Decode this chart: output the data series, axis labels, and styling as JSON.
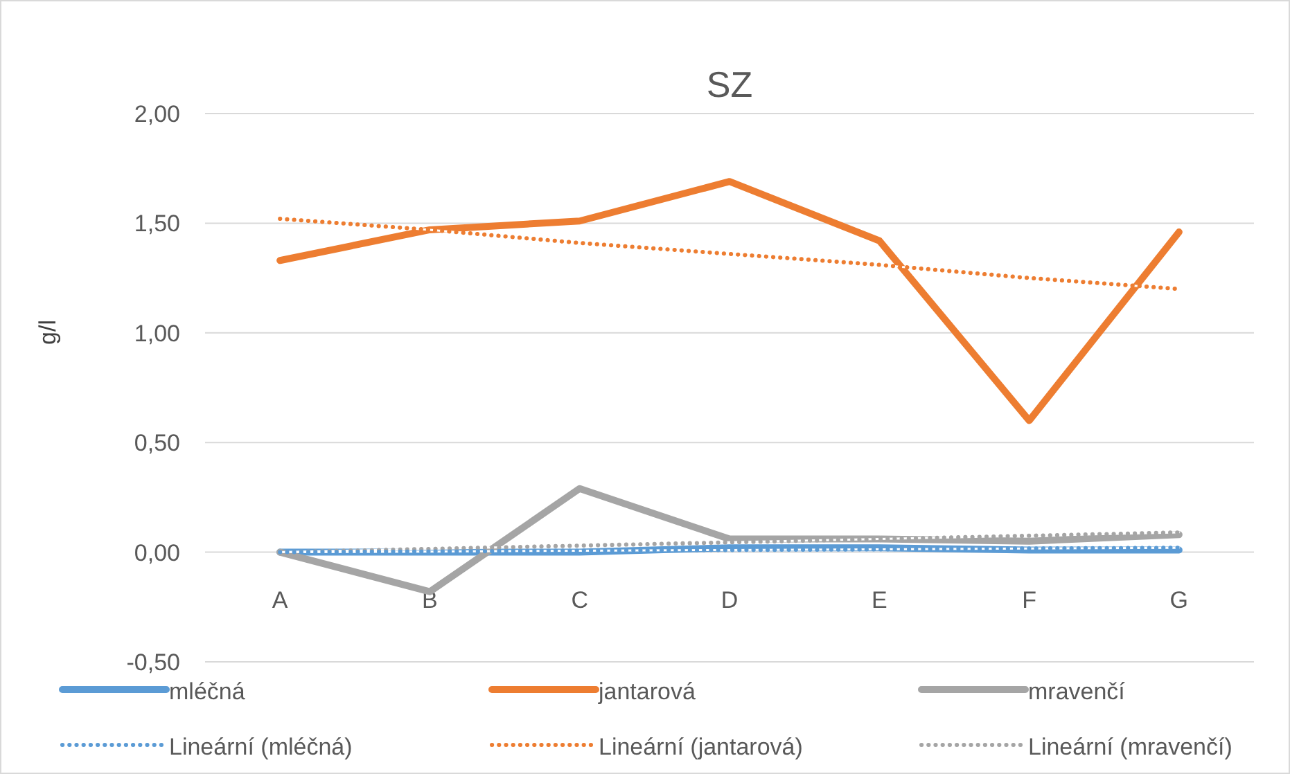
{
  "chart_data": {
    "type": "line",
    "title": "SZ",
    "ylabel": "g/l",
    "categories": [
      "A",
      "B",
      "C",
      "D",
      "E",
      "F",
      "G"
    ],
    "ylim": [
      -0.5,
      2
    ],
    "yticks": [
      {
        "value": -0.5,
        "label": "-0,50"
      },
      {
        "value": 0,
        "label": "0,00"
      },
      {
        "value": 0.5,
        "label": "0,50"
      },
      {
        "value": 1,
        "label": "1,00"
      },
      {
        "value": 1.5,
        "label": "1,50"
      },
      {
        "value": 2,
        "label": "2,00"
      }
    ],
    "grid": "y",
    "legend": "bottom",
    "marker": "none",
    "series": [
      {
        "name": "mléčná",
        "color": "#5b9bd5",
        "line_style": "solid",
        "values": [
          0,
          0,
          0,
          0.02,
          0.02,
          0.01,
          0.01
        ]
      },
      {
        "name": "jantarová",
        "color": "#ed7d31",
        "line_style": "solid",
        "values": [
          1.33,
          1.47,
          1.51,
          1.69,
          1.42,
          0.6,
          1.46
        ]
      },
      {
        "name": "mravenčí",
        "color": "#a5a5a5",
        "line_style": "solid",
        "values": [
          0,
          -0.18,
          0.29,
          0.06,
          0.06,
          0.05,
          0.08
        ]
      },
      {
        "name": "Lineární (mléčná)",
        "color": "#5b9bd5",
        "line_style": "dotted",
        "values": [
          0,
          0.003,
          0.007,
          0.01,
          0.013,
          0.017,
          0.02
        ]
      },
      {
        "name": "Lineární (jantarová)",
        "color": "#ed7d31",
        "line_style": "dotted",
        "values": [
          1.52,
          1.47,
          1.41,
          1.36,
          1.31,
          1.25,
          1.2
        ]
      },
      {
        "name": "Lineární (mravenčí)",
        "color": "#a5a5a5",
        "line_style": "dotted",
        "values": [
          0,
          0.015,
          0.03,
          0.045,
          0.06,
          0.075,
          0.09
        ]
      }
    ]
  }
}
